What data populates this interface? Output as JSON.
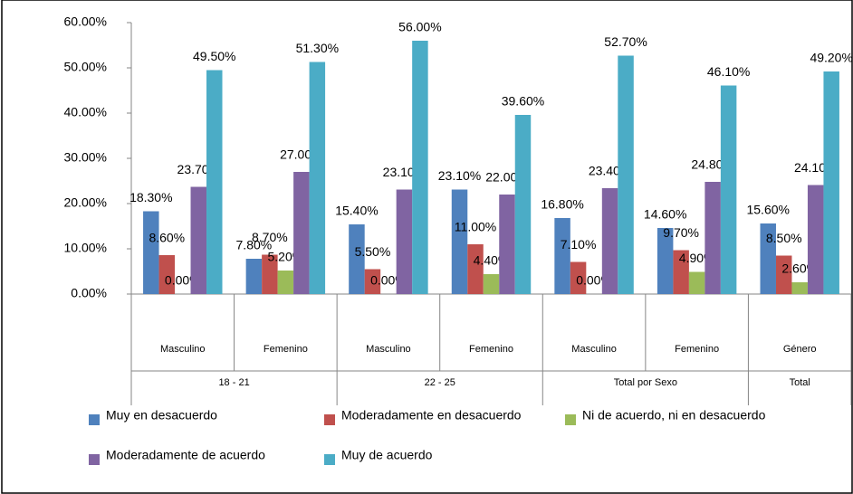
{
  "chart_data": {
    "type": "bar",
    "categories": [
      "Masculino",
      "Femenino",
      "Masculino",
      "Femenino",
      "Masculino",
      "Femenino",
      "Género"
    ],
    "groups": [
      {
        "label": "18 - 21",
        "span": 2
      },
      {
        "label": "22 - 25",
        "span": 2
      },
      {
        "label": "Total por Sexo",
        "span": 2
      },
      {
        "label": "Total",
        "span": 1
      }
    ],
    "series": [
      {
        "name": "Muy en desacuerdo",
        "color": "#4f81bd",
        "values": [
          18.3,
          7.8,
          15.4,
          23.1,
          16.8,
          14.6,
          15.6
        ],
        "value_labels": [
          "18.30%",
          "7.80%",
          "15.40%",
          "23.10%",
          "16.80%",
          "14.60%",
          "15.60%"
        ]
      },
      {
        "name": "Moderadamente en desacuerdo",
        "color": "#c0504d",
        "values": [
          8.6,
          8.7,
          5.5,
          11.0,
          7.1,
          9.7,
          8.5
        ],
        "value_labels": [
          "8.60%",
          "8.70%",
          "5.50%",
          "11.00%",
          "7.10%",
          "9.70%",
          "8.50%"
        ]
      },
      {
        "name": "Ni de acuerdo, ni en desacuerdo",
        "color": "#9bbb59",
        "values": [
          0,
          5.2,
          0,
          4.4,
          0,
          4.9,
          2.6
        ],
        "value_labels": [
          "0.00%",
          "5.20%",
          "0.00%",
          "4.40%",
          "0.00%",
          "4.90%",
          "2.60%"
        ]
      },
      {
        "name": "Moderadamente de acuerdo",
        "color": "#8064a2",
        "values": [
          23.7,
          27.0,
          23.1,
          22.0,
          23.4,
          24.8,
          24.1
        ],
        "value_labels": [
          "23.70%",
          "27.00%",
          "23.10%",
          "22.00%",
          "23.40%",
          "24.80%",
          "24.10%"
        ]
      },
      {
        "name": "Muy de acuerdo",
        "color": "#4bacc6",
        "values": [
          49.5,
          51.3,
          56.0,
          39.6,
          52.7,
          46.1,
          49.2
        ],
        "value_labels": [
          "49.50%",
          "51.30%",
          "56.00%",
          "39.60%",
          "52.70%",
          "46.10%",
          "49.20%"
        ]
      }
    ],
    "ylim": [
      0,
      60
    ],
    "yticks": [
      {
        "value": 0,
        "label": "0.00%"
      },
      {
        "value": 10,
        "label": "10.00%"
      },
      {
        "value": 20,
        "label": "20.00%"
      },
      {
        "value": 30,
        "label": "30.00%"
      },
      {
        "value": 40,
        "label": "40.00%"
      },
      {
        "value": 50,
        "label": "50.00%"
      },
      {
        "value": 60,
        "label": "60.00%"
      }
    ],
    "grid": false
  }
}
